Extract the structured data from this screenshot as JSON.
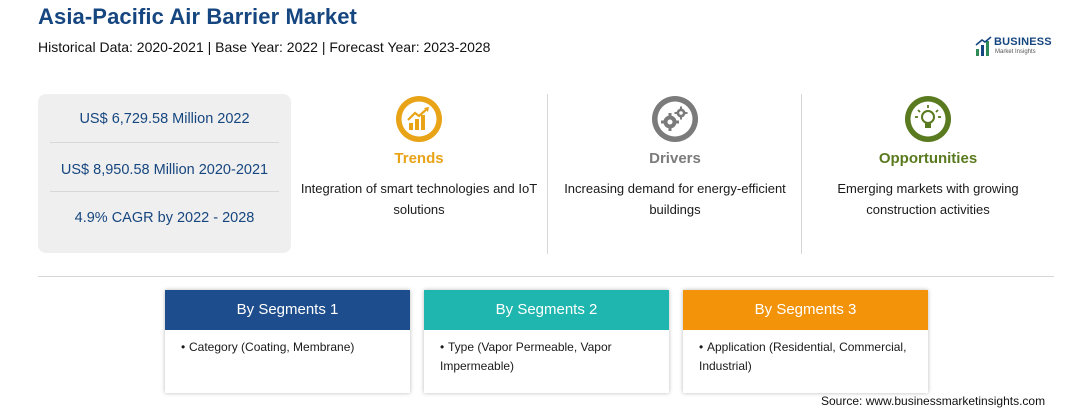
{
  "header": {
    "title": "Asia-Pacific Air Barrier Market",
    "subtitle": "Historical Data: 2020-2021 | Base Year: 2022 | Forecast Year: 2023-2028"
  },
  "logo": {
    "name": "BUSINESS",
    "tagline": "Market Insights",
    "color": "#16467f",
    "accent": "#2e8b57"
  },
  "stats": [
    "US$ 6,729.58 Million 2022",
    "US$ 8,950.58 Million 2020-2021",
    "4.9% CAGR by 2022 - 2028"
  ],
  "columns": [
    {
      "title": "Trends",
      "text": "Integration of smart technologies and IoT solutions",
      "color": "#e8a317",
      "icon": "growth-chart-icon"
    },
    {
      "title": "Drivers",
      "text": "Increasing demand for energy-efficient buildings",
      "color": "#7b7b7b",
      "icon": "gears-icon"
    },
    {
      "title": "Opportunities",
      "text": "Emerging markets with growing construction activities",
      "color": "#5a7a1f",
      "icon": "lightbulb-icon"
    }
  ],
  "segments": [
    {
      "title": "By Segments 1",
      "item": "Category (Coating, Membrane)",
      "color": "#1d4d8c"
    },
    {
      "title": "By Segments 2",
      "item": "Type (Vapor Permeable, Vapor Impermeable)",
      "color": "#1fb6b0"
    },
    {
      "title": "By Segments 3",
      "item": "Application (Residential, Commercial, Industrial)",
      "color": "#f2930a"
    }
  ],
  "bullet_glyph": "•",
  "source": "Source: www.businessmarketinsights.com"
}
